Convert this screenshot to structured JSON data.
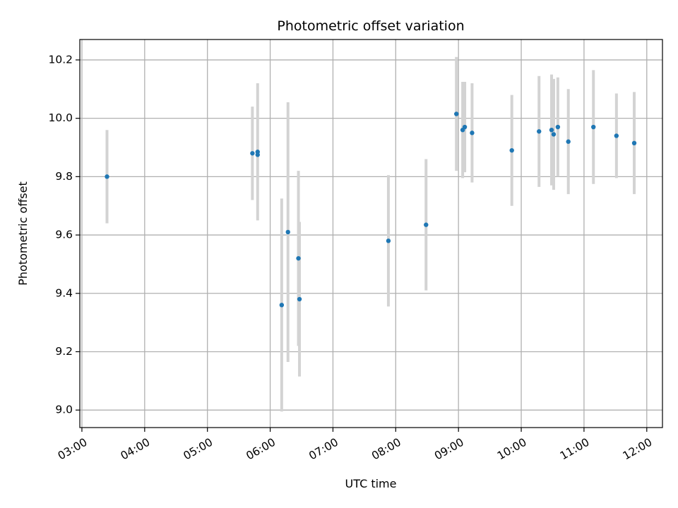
{
  "chart_data": {
    "type": "scatter",
    "title": "Photometric offset variation",
    "xlabel": "UTC time",
    "ylabel": "Photometric offset",
    "grid": true,
    "x_ticks": [
      "03:00",
      "04:00",
      "05:00",
      "06:00",
      "07:00",
      "08:00",
      "09:00",
      "10:00",
      "11:00",
      "12:00"
    ],
    "y_ticks": [
      "9.0",
      "9.2",
      "9.4",
      "9.6",
      "9.8",
      "10.0",
      "10.2"
    ],
    "xlim": [
      "02:58",
      "12:15"
    ],
    "ylim": [
      8.94,
      10.27
    ],
    "point_color": "#1f77b4",
    "errorbar_color": "#d3d3d3",
    "points": [
      {
        "x": "03:24",
        "y": 9.8,
        "err": 0.16
      },
      {
        "x": "05:43",
        "y": 9.88,
        "err": 0.16
      },
      {
        "x": "05:48",
        "y": 9.885,
        "err": 0.235
      },
      {
        "x": "05:48",
        "y": 9.875,
        "err": 0.0
      },
      {
        "x": "06:11",
        "y": 9.36,
        "err": 0.365
      },
      {
        "x": "06:17",
        "y": 9.61,
        "err": 0.445
      },
      {
        "x": "06:27",
        "y": 9.52,
        "err": 0.3
      },
      {
        "x": "06:28",
        "y": 9.38,
        "err": 0.265
      },
      {
        "x": "07:53",
        "y": 9.58,
        "err": 0.225
      },
      {
        "x": "08:29",
        "y": 9.635,
        "err": 0.225
      },
      {
        "x": "08:58",
        "y": 10.015,
        "err": 0.195
      },
      {
        "x": "09:04",
        "y": 9.96,
        "err": 0.165
      },
      {
        "x": "09:06",
        "y": 9.97,
        "err": 0.155
      },
      {
        "x": "09:13",
        "y": 9.95,
        "err": 0.17
      },
      {
        "x": "09:51",
        "y": 9.89,
        "err": 0.19
      },
      {
        "x": "10:17",
        "y": 9.955,
        "err": 0.19
      },
      {
        "x": "10:29",
        "y": 9.96,
        "err": 0.19
      },
      {
        "x": "10:31",
        "y": 9.945,
        "err": 0.19
      },
      {
        "x": "10:35",
        "y": 9.97,
        "err": 0.17
      },
      {
        "x": "10:45",
        "y": 9.92,
        "err": 0.18
      },
      {
        "x": "11:09",
        "y": 9.97,
        "err": 0.195
      },
      {
        "x": "11:31",
        "y": 9.94,
        "err": 0.145
      },
      {
        "x": "11:48",
        "y": 9.915,
        "err": 0.175
      }
    ]
  }
}
